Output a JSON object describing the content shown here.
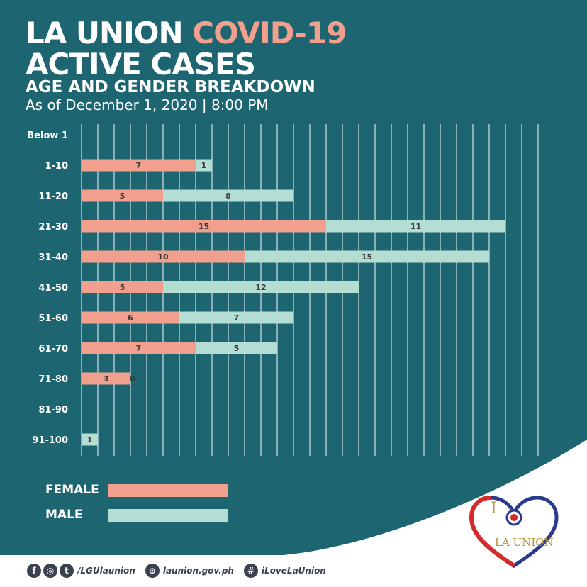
{
  "header": {
    "title_part1": "LA UNION ",
    "title_highlight": "COVID-19",
    "title_line2": "ACTIVE CASES",
    "subtitle": "AGE AND GENDER BREAKDOWN",
    "as_of": "As of December 1, 2020 | 8:00 PM"
  },
  "colors": {
    "background": "#1d6571",
    "female": "#f2a08e",
    "male": "#b4ddd4",
    "grid": "#cfe3e3",
    "label_text": "#3a3a3a"
  },
  "chart_data": {
    "type": "bar",
    "orientation": "horizontal",
    "stacked": true,
    "categories": [
      "Below 1",
      "1-10",
      "11-20",
      "21-30",
      "31-40",
      "41-50",
      "51-60",
      "61-70",
      "71-80",
      "81-90",
      "91-100"
    ],
    "series": [
      {
        "name": "FEMALE",
        "values": [
          0,
          7,
          5,
          15,
          10,
          5,
          6,
          7,
          3,
          0,
          0
        ],
        "labels": [
          "",
          "7",
          "5",
          "15",
          "10",
          "5",
          "6",
          "7",
          "3",
          "",
          ""
        ]
      },
      {
        "name": "MALE",
        "values": [
          0,
          1,
          8,
          11,
          15,
          12,
          7,
          5,
          0,
          0,
          1
        ],
        "labels": [
          "",
          "1",
          "8",
          "11",
          "15",
          "12",
          "7",
          "5",
          "0",
          "",
          "1"
        ]
      }
    ],
    "xlim": [
      0,
      28
    ],
    "grid": true
  },
  "legend": {
    "female_label": "FEMALE",
    "male_label": "MALE"
  },
  "footer": {
    "social_handle": "/LGUlaunion",
    "website": "launion.gov.ph",
    "hashtag": "iLoveLaUnion"
  },
  "logo": {
    "letter_i": "I",
    "text": "LA UNION"
  }
}
